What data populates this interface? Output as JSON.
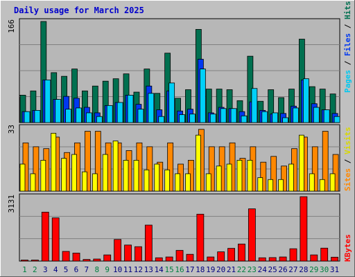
{
  "title": "Daily usage for March 2025",
  "colors": {
    "background": "#c0c0c0",
    "plot": "#b7b7b7",
    "title": "#0000cc",
    "hits": "#007050",
    "files": "#0038f0",
    "pages": "#00d0f8",
    "visits": "#ffff00",
    "sites": "#ff8800",
    "kbytes": "#ff0000",
    "weekday_label": "#000080",
    "weekend_label": "#008040"
  },
  "chart_data": [
    {
      "type": "bar",
      "title": "Hits / Files / Pages",
      "ymax_label": "166",
      "ylim": [
        0,
        166
      ],
      "right_label": {
        "pages": "Pages",
        "files": "Files",
        "hits": "Hits",
        "sep": " / "
      },
      "categories": [
        "1",
        "2",
        "3",
        "4",
        "5",
        "6",
        "7",
        "8",
        "9",
        "10",
        "11",
        "12",
        "13",
        "14",
        "15",
        "16",
        "17",
        "18",
        "19",
        "20",
        "21",
        "22",
        "23",
        "24",
        "25",
        "26",
        "27",
        "28",
        "29",
        "30",
        "31"
      ],
      "series": [
        {
          "name": "Hits",
          "values": [
            45,
            52,
            166,
            82,
            76,
            88,
            52,
            60,
            68,
            72,
            80,
            50,
            88,
            48,
            114,
            40,
            54,
            153,
            55,
            55,
            54,
            36,
            109,
            35,
            54,
            41,
            55,
            137,
            59,
            55,
            47
          ]
        },
        {
          "name": "Files",
          "values": [
            18,
            20,
            70,
            38,
            43,
            40,
            25,
            16,
            28,
            33,
            45,
            30,
            60,
            21,
            52,
            19,
            22,
            104,
            16,
            25,
            23,
            18,
            34,
            20,
            14,
            15,
            27,
            70,
            31,
            21,
            15
          ]
        },
        {
          "name": "Pages",
          "values": [
            18,
            20,
            70,
            38,
            22,
            24,
            16,
            10,
            28,
            33,
            45,
            22,
            48,
            10,
            65,
            13,
            14,
            88,
            14,
            23,
            23,
            11,
            56,
            18,
            16,
            8,
            24,
            72,
            25,
            21,
            10
          ]
        }
      ]
    },
    {
      "type": "bar",
      "title": "Visits / Sites",
      "ymax_label": "33",
      "ylim": [
        0,
        33
      ],
      "right_label": {
        "sites": "Sites",
        "visits": "Visits",
        "sep": " / "
      },
      "categories": [
        "1",
        "2",
        "3",
        "4",
        "5",
        "6",
        "7",
        "8",
        "9",
        "10",
        "11",
        "12",
        "13",
        "14",
        "15",
        "16",
        "17",
        "18",
        "19",
        "20",
        "21",
        "22",
        "23",
        "24",
        "25",
        "26",
        "27",
        "28",
        "29",
        "30",
        "31"
      ],
      "series": [
        {
          "name": "Visits",
          "values": [
            14,
            9,
            16,
            30,
            17,
            19,
            10,
            9,
            19,
            26,
            16,
            16,
            11,
            14,
            11,
            9,
            9,
            29,
            9,
            13,
            14,
            16,
            16,
            7,
            6,
            6,
            14,
            29,
            9,
            6,
            9
          ]
        },
        {
          "name": "Sites",
          "values": [
            25,
            23,
            22,
            28,
            20,
            25,
            31,
            31,
            25,
            25,
            21,
            25,
            23,
            15,
            25,
            14,
            16,
            32,
            23,
            23,
            25,
            17,
            23,
            15,
            18,
            13,
            22,
            28,
            23,
            31,
            19
          ]
        }
      ]
    },
    {
      "type": "bar",
      "title": "KBytes",
      "ymax_label": "3131",
      "ylim": [
        0,
        3131
      ],
      "right_label": {
        "kbytes": "KBytes"
      },
      "categories": [
        "1",
        "2",
        "3",
        "4",
        "5",
        "6",
        "7",
        "8",
        "9",
        "10",
        "11",
        "12",
        "13",
        "14",
        "15",
        "16",
        "17",
        "18",
        "19",
        "20",
        "21",
        "22",
        "23",
        "24",
        "25",
        "26",
        "27",
        "28",
        "29",
        "30",
        "31"
      ],
      "series": [
        {
          "name": "KBytes",
          "values": [
            30,
            40,
            2380,
            2100,
            470,
            390,
            80,
            100,
            300,
            1050,
            780,
            700,
            1750,
            160,
            200,
            520,
            330,
            2280,
            200,
            450,
            620,
            830,
            2540,
            160,
            170,
            200,
            600,
            3131,
            300,
            630,
            190
          ]
        }
      ]
    }
  ],
  "day_labels": [
    "1",
    "2",
    "3",
    "4",
    "5",
    "6",
    "7",
    "8",
    "9",
    "10",
    "11",
    "12",
    "13",
    "14",
    "15",
    "16",
    "17",
    "18",
    "19",
    "20",
    "21",
    "22",
    "23",
    "24",
    "25",
    "26",
    "27",
    "28",
    "29",
    "30",
    "31"
  ],
  "weekend_days": [
    "1",
    "2",
    "8",
    "9",
    "15",
    "16",
    "22",
    "23",
    "29",
    "30"
  ]
}
